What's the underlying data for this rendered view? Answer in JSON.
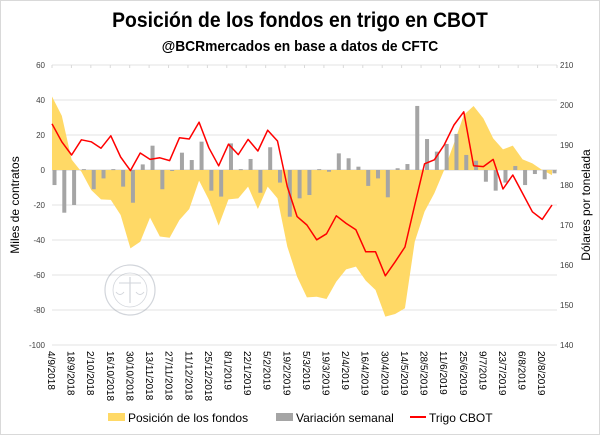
{
  "chart_data": {
    "type": "combo",
    "title": "Posición de los fondos en trigo en CBOT",
    "subtitle": "@BCRmercados en base a datos de CFTC",
    "ylabel_left": "Miles de contratos",
    "ylabel_right": "Dólares por tonelada",
    "ylim_left": [
      -100,
      60
    ],
    "ylim_right": [
      140,
      210
    ],
    "yticks_left": [
      "60",
      "40",
      "20",
      "0",
      "-20",
      "-40",
      "-60",
      "-80",
      "-100"
    ],
    "yticks_right": [
      "210",
      "200",
      "190",
      "180",
      "170",
      "160",
      "150",
      "140"
    ],
    "x_tick_labels": [
      "4/9/2018",
      "18/9/2018",
      "2/10/2018",
      "16/10/2018",
      "30/10/2018",
      "13/11/2018",
      "27/11/2018",
      "11/12/2018",
      "25/12/2018",
      "8/1/2019",
      "22/1/2019",
      "5/2/2019",
      "19/2/2019",
      "5/3/2019",
      "19/3/2019",
      "2/4/2019",
      "16/4/2019",
      "30/4/2019",
      "14/5/2019",
      "28/5/2019",
      "11/6/2019",
      "25/6/2019",
      "9/7/2019",
      "23/7/2019",
      "6/8/2019",
      "20/8/2019"
    ],
    "grid": true,
    "legend_position": "bottom",
    "series": [
      {
        "name": "Posición de los fondos",
        "type": "area",
        "axis": "left",
        "color": "#FFD966",
        "values": [
          42,
          31,
          6,
          -1,
          -11.4,
          -16.8,
          -17.1,
          -25.7,
          -44.8,
          -41,
          -27.2,
          -38,
          -38.7,
          -28.6,
          -22.3,
          -6.1,
          -17,
          -31.8,
          -16.8,
          -16.2,
          -9.5,
          -22.3,
          -9.5,
          -16.2,
          -43.8,
          -61,
          -72.8,
          -72.4,
          -73.7,
          -63.8,
          -56.8,
          -55.2,
          -63.2,
          -68.6,
          -83.8,
          -82.3,
          -79,
          -41,
          -23.8,
          -13.3,
          0,
          15.2,
          31.4,
          36.6,
          29.5,
          18.1,
          11.8,
          13.9,
          6.1,
          3.8,
          0,
          -2.9
        ]
      },
      {
        "name": "Variación semanal",
        "type": "bar",
        "axis": "left",
        "color": "#A5A5A5",
        "values": [
          -8.6,
          -24.4,
          -20,
          0.5,
          -11,
          -4.8,
          0.5,
          -9.5,
          -18.7,
          3.2,
          13.9,
          -11,
          -0.5,
          9.9,
          5.7,
          16.2,
          -11.8,
          -15.2,
          15.2,
          0.5,
          6.3,
          -13,
          13,
          -7.2,
          -26.7,
          -16.2,
          -14.3,
          0.5,
          -1,
          9.5,
          6.7,
          1.9,
          -9.1,
          -4.8,
          -15.6,
          1,
          3.4,
          36.6,
          17.7,
          10.5,
          14.9,
          20.6,
          8.6,
          5.3,
          -6.7,
          -11.8,
          -7.2,
          2.3,
          -8.6,
          -2.3,
          -5.3,
          -1.9
        ]
      },
      {
        "name": "Trigo CBOT",
        "type": "line",
        "axis": "right",
        "color": "#FF0000",
        "values": [
          195.3,
          190.8,
          187.5,
          191.3,
          190.8,
          189.2,
          192.3,
          187,
          183.6,
          188,
          186.4,
          186.8,
          186.1,
          191.8,
          191.5,
          195.7,
          189.3,
          184.8,
          190.2,
          187.6,
          191.4,
          188.5,
          193.7,
          191,
          179.6,
          172.1,
          170,
          166.3,
          167.8,
          172.3,
          170.4,
          168.8,
          163.3,
          163.3,
          157.3,
          160.8,
          164.5,
          175,
          185.3,
          186.3,
          190,
          195,
          198.3,
          184.8,
          184.6,
          186.4,
          179,
          182.5,
          177.9,
          173.3,
          171.4,
          175
        ]
      }
    ]
  },
  "watermark": "BOLSA DE COMERCIO DE ROSARIO"
}
